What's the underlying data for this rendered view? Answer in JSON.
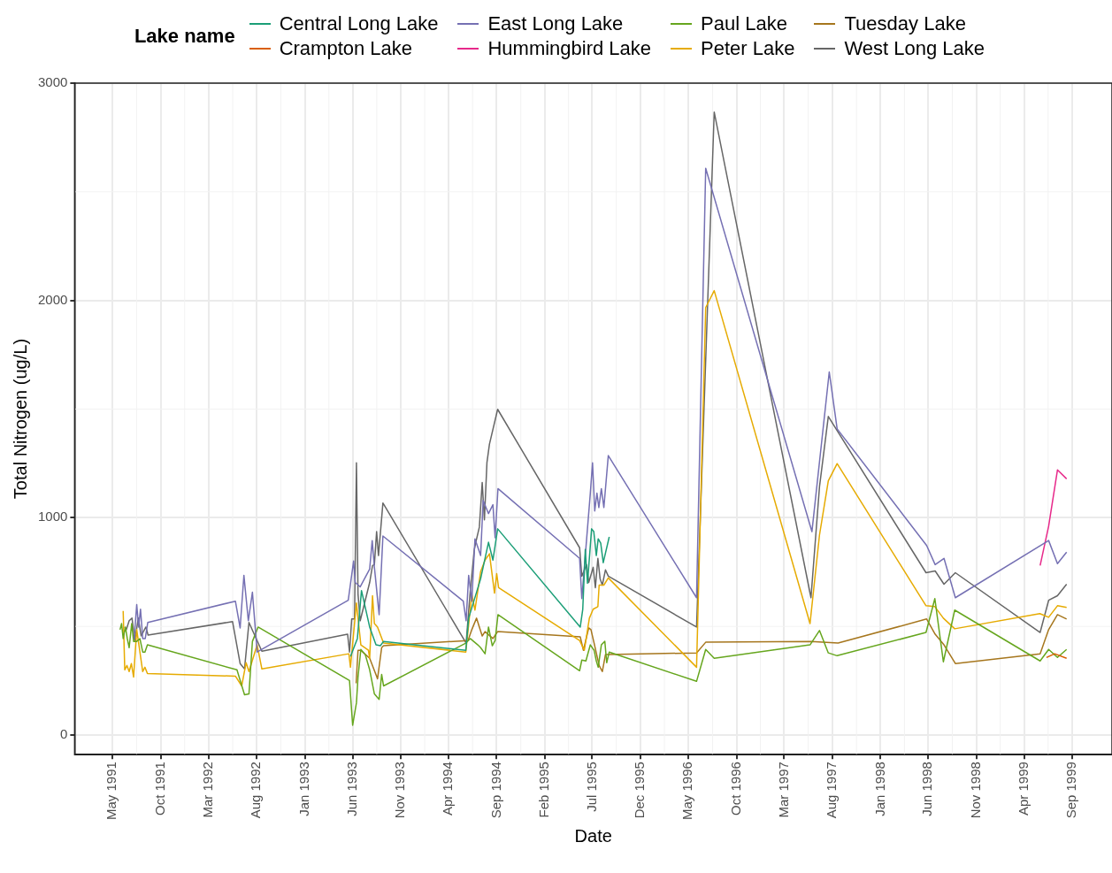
{
  "chart_data": {
    "type": "line",
    "xlabel": "Date",
    "ylabel": "Total Nitrogen (ug/L)",
    "legend_title": "Lake name",
    "legend": "top",
    "grid": true,
    "xlim": [
      "1991-01-01",
      "2000-01-05"
    ],
    "xticks": [
      {
        "value": "1991-05-01",
        "label": "May 1991"
      },
      {
        "value": "1991-10-01",
        "label": "Oct 1991"
      },
      {
        "value": "1992-03-01",
        "label": "Mar 1992"
      },
      {
        "value": "1992-08-01",
        "label": "Aug 1992"
      },
      {
        "value": "1993-01-01",
        "label": "Jan 1993"
      },
      {
        "value": "1993-06-01",
        "label": "Jun 1993"
      },
      {
        "value": "1993-11-01",
        "label": "Nov 1993"
      },
      {
        "value": "1994-04-01",
        "label": "Apr 1994"
      },
      {
        "value": "1994-09-01",
        "label": "Sep 1994"
      },
      {
        "value": "1995-02-01",
        "label": "Feb 1995"
      },
      {
        "value": "1995-07-01",
        "label": "Jul 1995"
      },
      {
        "value": "1995-12-01",
        "label": "Dec 1995"
      },
      {
        "value": "1996-05-01",
        "label": "May 1996"
      },
      {
        "value": "1996-10-01",
        "label": "Oct 1996"
      },
      {
        "value": "1997-03-01",
        "label": "Mar 1997"
      },
      {
        "value": "1997-08-01",
        "label": "Aug 1997"
      },
      {
        "value": "1998-01-01",
        "label": "Jan 1998"
      },
      {
        "value": "1998-06-01",
        "label": "Jun 1998"
      },
      {
        "value": "1998-11-01",
        "label": "Nov 1998"
      },
      {
        "value": "1999-04-01",
        "label": "Apr 1999"
      },
      {
        "value": "1999-09-01",
        "label": "Sep 1999"
      }
    ],
    "ylim": [
      -90,
      3000
    ],
    "yticks": [
      0,
      1000,
      2000,
      3000
    ],
    "series": [
      {
        "name": "Central Long Lake",
        "color": "#1b9e77",
        "x": [
          "1993-05-25",
          "1993-06-16",
          "1993-06-29",
          "1993-07-25",
          "1993-08-14",
          "1993-08-28",
          "1993-09-07",
          "1994-05-26",
          "1994-06-04",
          "1994-07-12",
          "1994-08-06",
          "1994-08-20",
          "1994-09-04",
          "1995-05-24",
          "1995-06-01",
          "1995-06-09",
          "1995-06-16",
          "1995-06-29",
          "1995-07-06",
          "1995-07-14",
          "1995-07-20",
          "1995-07-28",
          "1995-08-05",
          "1995-08-24"
        ],
        "values": [
          361,
          444,
          665,
          497,
          415,
          411,
          431,
          390,
          538,
          719,
          887,
          805,
          949,
          497,
          579,
          854,
          698,
          949,
          936,
          826,
          903,
          883,
          793,
          912
        ]
      },
      {
        "name": "Crampton Lake",
        "color": "#d95f02",
        "x": [
          "1999-06-11",
          "1999-07-07",
          "1999-08-14"
        ],
        "values": [
          357,
          374,
          353
        ]
      },
      {
        "name": "East Long Lake",
        "color": "#7570b3",
        "x": [
          "1991-07-09",
          "1991-07-17",
          "1991-07-23",
          "1991-07-29",
          "1991-08-05",
          "1991-08-13",
          "1991-08-21",
          "1992-05-25",
          "1992-06-09",
          "1992-06-21",
          "1992-07-05",
          "1992-07-18",
          "1992-08-02",
          "1993-05-18",
          "1993-06-04",
          "1993-06-09",
          "1993-06-25",
          "1993-07-25",
          "1993-08-02",
          "1993-08-09",
          "1993-08-24",
          "1993-09-05",
          "1994-05-18",
          "1994-05-27",
          "1994-06-04",
          "1994-06-14",
          "1994-06-24",
          "1994-07-12",
          "1994-07-20",
          "1994-08-06",
          "1994-08-20",
          "1994-08-27",
          "1994-09-05",
          "1995-05-22",
          "1995-05-29",
          "1995-06-25",
          "1995-07-02",
          "1995-07-09",
          "1995-07-16",
          "1995-07-22",
          "1995-07-30",
          "1995-08-07",
          "1995-08-21",
          "1996-05-27",
          "1996-06-25",
          "1997-05-28",
          "1997-07-22",
          "1997-08-16",
          "1998-05-27",
          "1998-06-23",
          "1998-07-21",
          "1998-08-26",
          "1999-06-18",
          "1999-07-16",
          "1999-08-14"
        ],
        "values": [
          444,
          600,
          497,
          579,
          444,
          444,
          518,
          616,
          493,
          735,
          526,
          657,
          382,
          620,
          801,
          702,
          682,
          764,
          895,
          772,
          554,
          916,
          616,
          526,
          735,
          616,
          903,
          826,
          1080,
          1019,
          1060,
          908,
          1134,
          813,
          628,
          1113,
          1253,
          1031,
          1113,
          1047,
          1134,
          1047,
          1286,
          632,
          2608,
          936,
          1671,
          1409,
          872,
          784,
          813,
          632,
          895,
          789,
          842
        ]
      },
      {
        "name": "Hummingbird Lake",
        "color": "#e7298a",
        "x": [
          "1999-05-22",
          "1999-06-18",
          "1999-07-16",
          "1999-08-14"
        ],
        "values": [
          780,
          961,
          1220,
          1179
        ]
      },
      {
        "name": "Paul Lake",
        "color": "#66a61e",
        "x": [
          "1991-05-25",
          "1991-05-30",
          "1991-06-04",
          "1991-06-11",
          "1991-06-17",
          "1991-06-23",
          "1991-07-01",
          "1991-07-07",
          "1991-07-17",
          "1991-07-27",
          "1991-08-05",
          "1991-08-12",
          "1991-08-20",
          "1992-05-30",
          "1992-06-23",
          "1992-07-07",
          "1992-07-18",
          "1992-08-05",
          "1993-05-22",
          "1993-06-01",
          "1993-06-13",
          "1993-06-18",
          "1993-06-27",
          "1993-07-11",
          "1993-07-25",
          "1993-08-09",
          "1993-08-24",
          "1993-09-01",
          "1993-09-07",
          "1994-05-26",
          "1994-06-09",
          "1994-07-03",
          "1994-07-12",
          "1994-07-26",
          "1994-08-06",
          "1994-08-18",
          "1994-08-27",
          "1994-09-05",
          "1995-05-22",
          "1995-05-29",
          "1995-06-11",
          "1995-06-25",
          "1995-07-07",
          "1995-07-14",
          "1995-07-20",
          "1995-07-30",
          "1995-08-10",
          "1995-08-16",
          "1995-08-24",
          "1996-05-27",
          "1996-06-25",
          "1996-07-22",
          "1997-05-22",
          "1997-06-21",
          "1997-07-19",
          "1997-08-16",
          "1998-05-25",
          "1998-06-22",
          "1998-07-19",
          "1998-08-24",
          "1999-05-22",
          "1999-06-18",
          "1999-07-16",
          "1999-08-14"
        ],
        "values": [
          485,
          513,
          444,
          497,
          444,
          402,
          513,
          431,
          431,
          444,
          382,
          382,
          415,
          300,
          185,
          189,
          431,
          497,
          251,
          45,
          148,
          267,
          394,
          370,
          300,
          189,
          164,
          279,
          226,
          423,
          444,
          415,
          402,
          374,
          497,
          411,
          435,
          554,
          296,
          345,
          341,
          415,
          390,
          341,
          312,
          415,
          431,
          333,
          382,
          247,
          394,
          353,
          415,
          481,
          378,
          365,
          472,
          628,
          337,
          575,
          341,
          394,
          357,
          394
        ]
      },
      {
        "name": "Peter Lake",
        "color": "#e6ab02",
        "x": [
          "1991-06-04",
          "1991-06-09",
          "1991-06-16",
          "1991-06-23",
          "1991-06-30",
          "1991-07-07",
          "1991-07-17",
          "1991-08-05",
          "1991-08-12",
          "1991-08-20",
          "1992-05-25",
          "1992-06-14",
          "1992-06-28",
          "1992-07-07",
          "1992-08-02",
          "1992-08-17",
          "1993-05-20",
          "1993-05-25",
          "1993-06-13",
          "1993-06-27",
          "1993-07-21",
          "1993-07-25",
          "1993-08-03",
          "1993-08-09",
          "1993-08-19",
          "1993-09-07",
          "1994-05-26",
          "1994-06-14",
          "1994-06-24",
          "1994-07-12",
          "1994-07-26",
          "1994-08-09",
          "1994-08-25",
          "1994-09-01",
          "1994-09-07",
          "1995-05-22",
          "1995-06-06",
          "1995-06-22",
          "1995-07-04",
          "1995-07-19",
          "1995-07-23",
          "1995-08-07",
          "1995-08-21",
          "1996-05-27",
          "1996-06-25",
          "1996-07-22",
          "1997-05-22",
          "1997-06-21",
          "1997-07-19",
          "1997-08-16",
          "1998-05-25",
          "1998-06-22",
          "1998-07-19",
          "1998-08-24",
          "1999-05-21",
          "1999-06-18",
          "1999-07-16",
          "1999-08-14"
        ],
        "values": [
          571,
          300,
          320,
          292,
          329,
          267,
          485,
          292,
          312,
          283,
          271,
          226,
          333,
          292,
          415,
          304,
          374,
          312,
          608,
          415,
          390,
          353,
          641,
          513,
          497,
          423,
          382,
          649,
          575,
          752,
          805,
          834,
          653,
          743,
          678,
          435,
          390,
          538,
          579,
          591,
          690,
          690,
          723,
          312,
          1967,
          2045,
          513,
          920,
          1170,
          1249,
          595,
          591,
          538,
          489,
          559,
          542,
          595,
          587
        ]
      },
      {
        "name": "Tuesday Lake",
        "color": "#a6761d",
        "x": [
          "1993-06-12",
          "1993-06-18",
          "1993-06-27",
          "1993-07-25",
          "1993-08-19",
          "1993-09-01",
          "1993-09-07",
          "1994-06-02",
          "1994-06-14",
          "1994-06-29",
          "1994-07-08",
          "1994-07-17",
          "1994-07-26",
          "1994-08-20",
          "1994-09-04",
          "1995-05-24",
          "1995-06-03",
          "1995-06-20",
          "1995-06-27",
          "1995-07-07",
          "1995-07-23",
          "1995-08-02",
          "1995-08-12",
          "1995-08-21",
          "1996-05-27",
          "1996-06-25",
          "1997-05-25",
          "1997-08-19",
          "1998-05-27",
          "1998-06-23",
          "1998-07-21",
          "1998-08-26",
          "1999-05-22",
          "1999-06-18",
          "1999-07-16",
          "1999-08-14"
        ],
        "values": [
          238,
          390,
          390,
          353,
          259,
          402,
          411,
          435,
          485,
          538,
          497,
          456,
          476,
          444,
          476,
          452,
          390,
          493,
          485,
          423,
          320,
          292,
          370,
          370,
          378,
          427,
          431,
          423,
          534,
          464,
          415,
          329,
          374,
          485,
          554,
          534
        ]
      },
      {
        "name": "West Long Lake",
        "color": "#666666",
        "x": [
          "1991-06-09",
          "1991-06-14",
          "1991-06-23",
          "1991-07-02",
          "1991-07-11",
          "1991-07-22",
          "1991-07-31",
          "1991-08-15",
          "1991-08-22",
          "1992-05-16",
          "1992-06-09",
          "1992-06-23",
          "1992-07-07",
          "1992-08-17",
          "1993-05-16",
          "1993-05-22",
          "1993-05-29",
          "1993-06-07",
          "1993-06-13",
          "1993-06-18",
          "1993-06-25",
          "1993-07-25",
          "1993-08-03",
          "1993-08-09",
          "1993-08-16",
          "1993-08-22",
          "1993-09-05",
          "1994-05-27",
          "1994-06-09",
          "1994-06-22",
          "1994-06-28",
          "1994-07-08",
          "1994-07-17",
          "1994-07-24",
          "1994-08-01",
          "1994-08-09",
          "1994-09-04",
          "1995-05-22",
          "1995-05-29",
          "1995-06-13",
          "1995-06-20",
          "1995-07-04",
          "1995-07-11",
          "1995-07-19",
          "1995-07-26",
          "1995-08-02",
          "1995-08-12",
          "1995-08-21",
          "1996-05-27",
          "1996-07-22",
          "1997-05-25",
          "1997-06-21",
          "1997-07-19",
          "1998-05-25",
          "1998-06-23",
          "1998-07-21",
          "1998-08-26",
          "1999-05-22",
          "1999-06-18",
          "1999-07-16",
          "1999-08-14"
        ],
        "values": [
          497,
          485,
          526,
          538,
          435,
          538,
          456,
          497,
          460,
          522,
          329,
          304,
          518,
          386,
          464,
          382,
          534,
          534,
          1253,
          649,
          526,
          702,
          780,
          784,
          936,
          826,
          1068,
          423,
          661,
          854,
          895,
          957,
          1162,
          990,
          1253,
          1339,
          1499,
          862,
          731,
          784,
          702,
          772,
          678,
          813,
          719,
          690,
          760,
          731,
          497,
          2867,
          632,
          1142,
          1466,
          747,
          755,
          694,
          747,
          472,
          620,
          641,
          694
        ]
      }
    ]
  }
}
